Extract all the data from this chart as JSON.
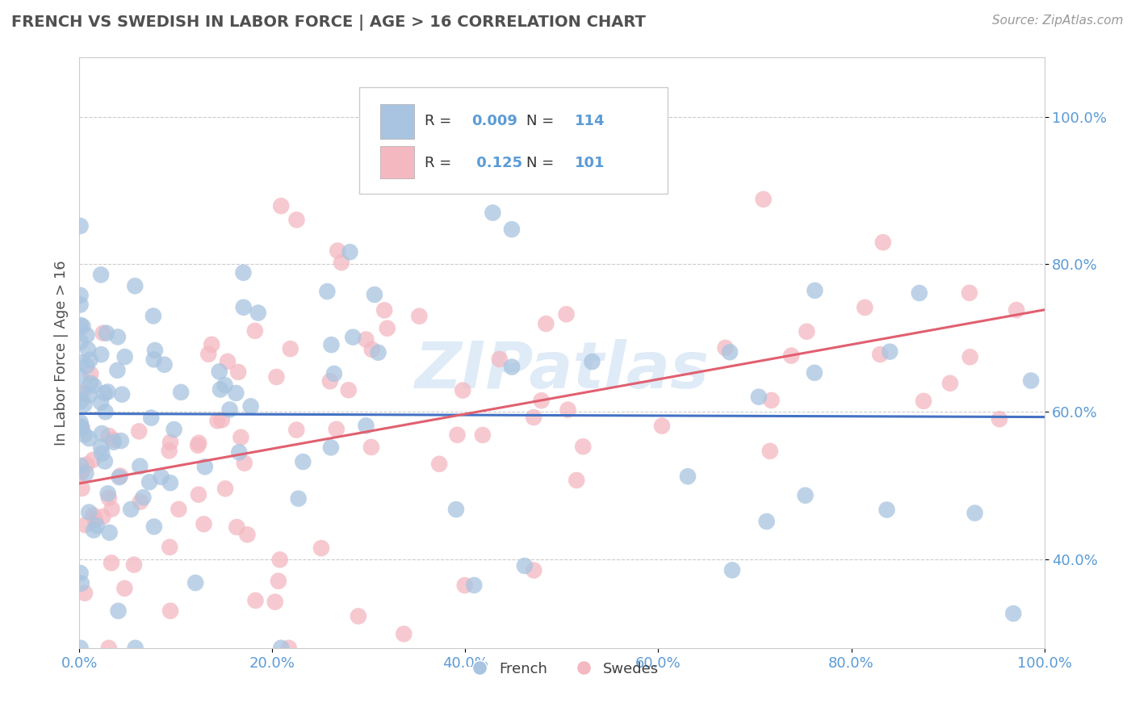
{
  "title": "FRENCH VS SWEDISH IN LABOR FORCE | AGE > 16 CORRELATION CHART",
  "source_text": "Source: ZipAtlas.com",
  "ylabel": "In Labor Force | Age > 16",
  "xlim": [
    0.0,
    1.0
  ],
  "ylim": [
    0.28,
    1.08
  ],
  "yticks": [
    0.4,
    0.6,
    0.8,
    1.0
  ],
  "ytick_labels": [
    "40.0%",
    "60.0%",
    "80.0%",
    "100.0%"
  ],
  "xticks": [
    0.0,
    0.2,
    0.4,
    0.6,
    0.8,
    1.0
  ],
  "xtick_labels": [
    "0.0%",
    "20.0%",
    "40.0%",
    "60.0%",
    "80.0%",
    "100.0%"
  ],
  "french_color": "#a8c4e0",
  "swedes_color": "#f4b8c1",
  "french_line_color": "#4472c4",
  "swedes_line_color": "#e06070",
  "legend_R_french": "0.009",
  "legend_N_french": "114",
  "legend_R_swedes": "0.125",
  "legend_N_swedes": "101",
  "grid_color": "#cccccc",
  "background_color": "#ffffff",
  "title_color": "#505050",
  "axis_label_color": "#505050",
  "tick_label_color": "#5b9bd5",
  "watermark": "ZIPatlas"
}
